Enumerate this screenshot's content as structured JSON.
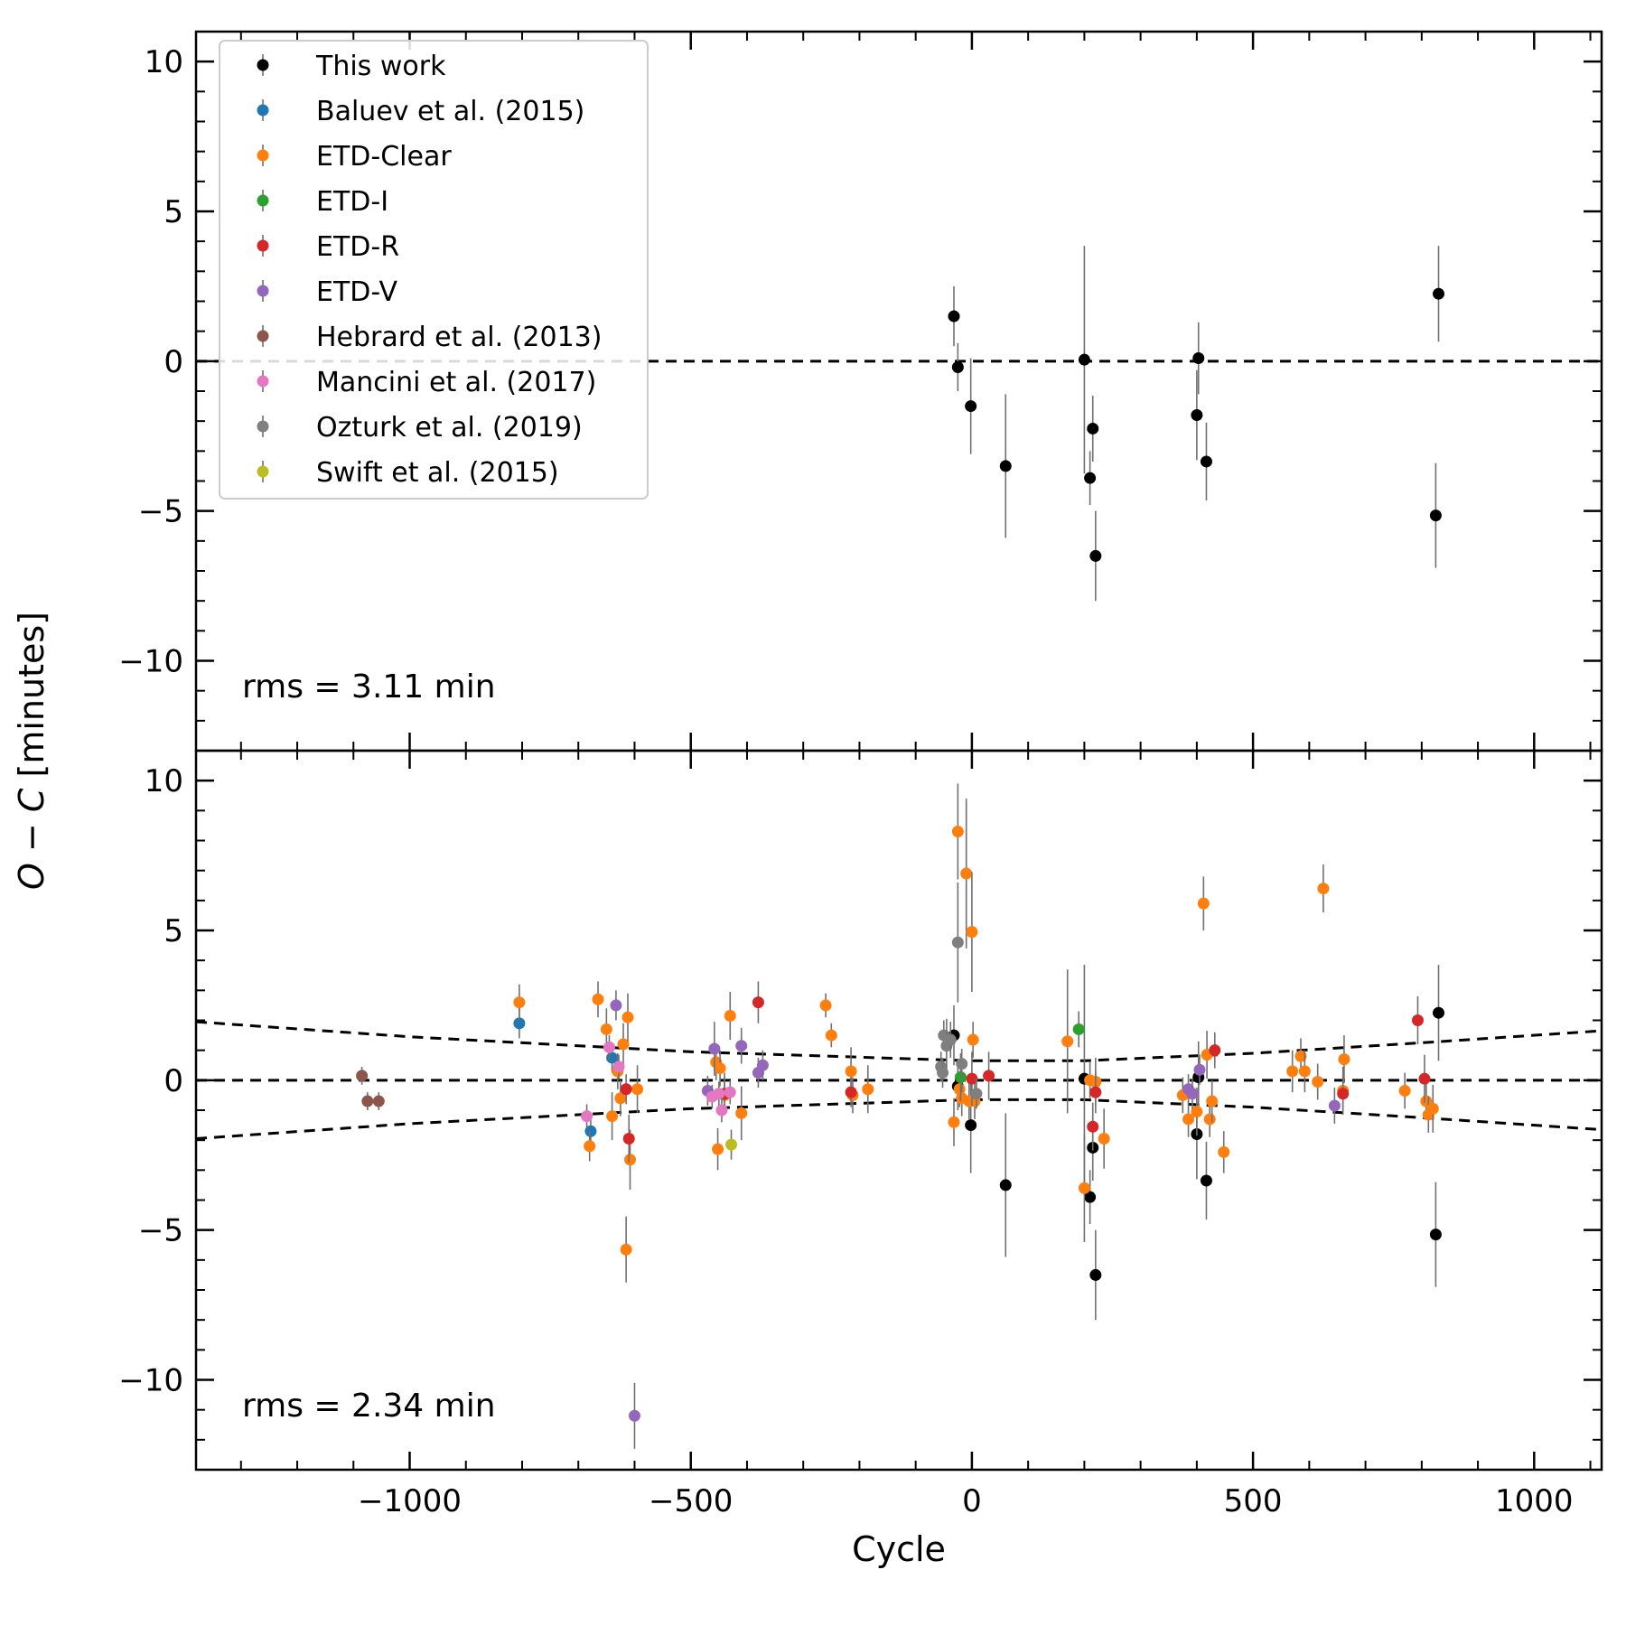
{
  "chart_data": {
    "type": "scatter",
    "xlabel": "Cycle",
    "ylabel_italic_part": "O − C",
    "ylabel_rest": " [minutes]",
    "xlim": [
      -1380,
      1120
    ],
    "ylim": [
      -13,
      11
    ],
    "xticks": [
      -1000,
      -500,
      0,
      500,
      1000
    ],
    "xtick_labels": [
      "−1000",
      "−500",
      "0",
      "500",
      "1000"
    ],
    "yticks": [
      10,
      5,
      0,
      -5,
      -10
    ],
    "ytick_labels": [
      "10",
      "5",
      "0",
      "−5",
      "−10"
    ],
    "series_styles": [
      {
        "name": "This work",
        "color": "#000000"
      },
      {
        "name": "Baluev et al. (2015)",
        "color": "#1f77b4"
      },
      {
        "name": "ETD-Clear",
        "color": "#ff7f0e"
      },
      {
        "name": "ETD-I",
        "color": "#2ca02c"
      },
      {
        "name": "ETD-R",
        "color": "#d62728"
      },
      {
        "name": "ETD-V",
        "color": "#9467bd"
      },
      {
        "name": "Hebrard et al. (2013)",
        "color": "#8c564b"
      },
      {
        "name": "Mancini et al. (2017)",
        "color": "#e377c2"
      },
      {
        "name": "Ozturk et al. (2019)",
        "color": "#7f7f7f"
      },
      {
        "name": "Swift et al. (2015)",
        "color": "#bcbd22"
      }
    ],
    "panels": [
      {
        "name": "top",
        "rms_label": "rms = 3.11 min",
        "envelope": false,
        "series": [
          {
            "name": "This work",
            "points": [
              [
                -32,
                1.5,
                1.0
              ],
              [
                -25,
                -0.2,
                0.8
              ],
              [
                -2,
                -1.5,
                1.6
              ],
              [
                60,
                -3.5,
                2.4
              ],
              [
                200,
                0.05,
                3.8
              ],
              [
                210,
                -3.9,
                0.9
              ],
              [
                215,
                -2.25,
                1.1
              ],
              [
                220,
                -6.5,
                1.5
              ],
              [
                400,
                -1.8,
                1.5
              ],
              [
                403,
                0.1,
                1.2
              ],
              [
                417,
                -3.35,
                1.3
              ],
              [
                830,
                2.25,
                1.6
              ],
              [
                825,
                -5.15,
                1.75
              ]
            ]
          }
        ]
      },
      {
        "name": "bottom",
        "rms_label": "rms = 2.34 min",
        "envelope": true,
        "envelope_upper": [
          [
            -1380,
            1.95
          ],
          [
            -1000,
            1.45
          ],
          [
            -500,
            0.95
          ],
          [
            0,
            0.65
          ],
          [
            200,
            0.65
          ],
          [
            500,
            0.9
          ],
          [
            800,
            1.25
          ],
          [
            1120,
            1.65
          ]
        ],
        "series": [
          {
            "name": "This work",
            "points": [
              [
                -32,
                1.5,
                1.0
              ],
              [
                -25,
                -0.2,
                0.8
              ],
              [
                -2,
                -1.5,
                1.6
              ],
              [
                60,
                -3.5,
                2.4
              ],
              [
                200,
                0.05,
                3.8
              ],
              [
                210,
                -3.9,
                0.9
              ],
              [
                215,
                -2.25,
                1.1
              ],
              [
                220,
                -6.5,
                1.5
              ],
              [
                400,
                -1.8,
                1.5
              ],
              [
                403,
                0.1,
                1.2
              ],
              [
                417,
                -3.35,
                1.3
              ],
              [
                830,
                2.25,
                1.6
              ],
              [
                825,
                -5.15,
                1.75
              ]
            ]
          },
          {
            "name": "Baluev et al. (2015)",
            "points": [
              [
                -805,
                1.9,
                0.5
              ],
              [
                -678,
                -1.7,
                0.5
              ],
              [
                -640,
                0.75,
                0.5
              ]
            ]
          },
          {
            "name": "ETD-Clear",
            "points": [
              [
                -805,
                2.6,
                0.6
              ],
              [
                -680,
                -2.2,
                0.5
              ],
              [
                -665,
                2.7,
                0.6
              ],
              [
                -650,
                1.7,
                0.7
              ],
              [
                -640,
                -1.2,
                0.8
              ],
              [
                -630,
                0.3,
                0.6
              ],
              [
                -625,
                -0.6,
                0.6
              ],
              [
                -620,
                1.2,
                0.7
              ],
              [
                -615,
                -5.65,
                1.1
              ],
              [
                -612,
                2.1,
                0.8
              ],
              [
                -608,
                -2.65,
                1.0
              ],
              [
                -595,
                -0.3,
                0.8
              ],
              [
                -455,
                0.6,
                0.6
              ],
              [
                -452,
                -2.3,
                0.7
              ],
              [
                -448,
                0.4,
                0.6
              ],
              [
                -440,
                -0.5,
                0.6
              ],
              [
                -430,
                2.15,
                0.8
              ],
              [
                -410,
                -1.1,
                0.9
              ],
              [
                -260,
                2.5,
                0.4
              ],
              [
                -250,
                1.5,
                0.4
              ],
              [
                -215,
                0.3,
                0.8
              ],
              [
                -212,
                -0.5,
                0.6
              ],
              [
                -185,
                -0.3,
                0.8
              ],
              [
                -32,
                -1.4,
                0.8
              ],
              [
                -25,
                8.3,
                1.6
              ],
              [
                -22,
                -0.3,
                0.6
              ],
              [
                -18,
                -0.6,
                0.6
              ],
              [
                -10,
                6.9,
                2.5
              ],
              [
                -5,
                -0.7,
                0.6
              ],
              [
                0,
                4.95,
                2.0
              ],
              [
                2,
                1.35,
                0.6
              ],
              [
                5,
                -0.7,
                0.6
              ],
              [
                170,
                1.3,
                2.4
              ],
              [
                200,
                -3.6,
                1.8
              ],
              [
                210,
                0.0,
                0.6
              ],
              [
                220,
                -0.05,
                0.8
              ],
              [
                235,
                -1.95,
                1.0
              ],
              [
                375,
                -0.5,
                0.6
              ],
              [
                385,
                -1.3,
                0.6
              ],
              [
                400,
                -1.05,
                0.8
              ],
              [
                412,
                5.9,
                0.9
              ],
              [
                418,
                0.85,
                0.8
              ],
              [
                423,
                -1.3,
                0.6
              ],
              [
                427,
                -0.7,
                0.7
              ],
              [
                448,
                -2.4,
                0.7
              ],
              [
                570,
                0.3,
                0.7
              ],
              [
                585,
                0.8,
                0.6
              ],
              [
                592,
                0.3,
                0.7
              ],
              [
                615,
                -0.05,
                0.6
              ],
              [
                625,
                6.4,
                0.8
              ],
              [
                660,
                -0.35,
                0.8
              ],
              [
                662,
                0.7,
                0.8
              ],
              [
                770,
                -0.35,
                0.6
              ],
              [
                808,
                -0.7,
                0.6
              ],
              [
                812,
                -1.15,
                0.6
              ],
              [
                820,
                -0.95,
                0.8
              ]
            ]
          },
          {
            "name": "ETD-I",
            "points": [
              [
                190,
                1.7,
                0.6
              ],
              [
                -20,
                0.1,
                0.8
              ]
            ]
          },
          {
            "name": "ETD-R",
            "points": [
              [
                -615,
                -0.3,
                0.5
              ],
              [
                -610,
                -1.95,
                0.8
              ],
              [
                -440,
                -0.45,
                0.7
              ],
              [
                -380,
                2.6,
                0.7
              ],
              [
                -215,
                -0.4,
                0.5
              ],
              [
                0,
                0.05,
                0.9
              ],
              [
                30,
                0.15,
                0.8
              ],
              [
                215,
                -1.55,
                0.8
              ],
              [
                220,
                -0.4,
                0.7
              ],
              [
                432,
                1.0,
                0.6
              ],
              [
                660,
                -0.45,
                0.6
              ],
              [
                793,
                2.0,
                0.8
              ],
              [
                805,
                0.05,
                0.8
              ]
            ]
          },
          {
            "name": "ETD-V",
            "points": [
              [
                -633,
                2.5,
                0.5
              ],
              [
                -600,
                -11.2,
                1.1
              ],
              [
                -470,
                -0.35,
                0.5
              ],
              [
                -458,
                1.05,
                0.9
              ],
              [
                -410,
                1.15,
                0.6
              ],
              [
                -380,
                0.25,
                0.5
              ],
              [
                -372,
                0.5,
                0.5
              ],
              [
                385,
                -0.3,
                0.5
              ],
              [
                392,
                -0.45,
                0.5
              ],
              [
                405,
                0.35,
                0.5
              ],
              [
                645,
                -0.85,
                0.6
              ]
            ]
          },
          {
            "name": "Hebrard et al. (2013)",
            "points": [
              [
                -1085,
                0.15,
                0.3
              ],
              [
                -1075,
                -0.7,
                0.3
              ],
              [
                -1055,
                -0.7,
                0.3
              ]
            ]
          },
          {
            "name": "Mancini et al. (2017)",
            "points": [
              [
                -685,
                -1.2,
                0.4
              ],
              [
                -645,
                1.1,
                0.4
              ],
              [
                -628,
                0.45,
                0.4
              ],
              [
                -462,
                -0.55,
                0.4
              ],
              [
                -450,
                -0.45,
                0.4
              ],
              [
                -445,
                -1.0,
                0.4
              ],
              [
                -430,
                -0.4,
                0.4
              ]
            ]
          },
          {
            "name": "Ozturk et al. (2019)",
            "points": [
              [
                -55,
                0.45,
                0.5
              ],
              [
                -50,
                1.5,
                0.5
              ],
              [
                -45,
                1.15,
                0.9
              ],
              [
                -38,
                1.35,
                0.6
              ],
              [
                -25,
                4.6,
                2.0
              ],
              [
                -18,
                0.55,
                0.5
              ],
              [
                8,
                -0.45,
                0.5
              ],
              [
                -52,
                0.25,
                0.5
              ]
            ]
          },
          {
            "name": "Swift et al. (2015)",
            "points": [
              [
                -428,
                -2.15,
                0.5
              ]
            ]
          }
        ]
      }
    ]
  }
}
